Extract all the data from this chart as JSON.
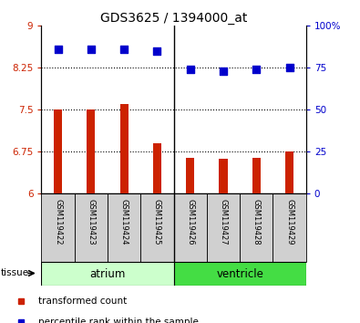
{
  "title": "GDS3625 / 1394000_at",
  "samples": [
    "GSM119422",
    "GSM119423",
    "GSM119424",
    "GSM119425",
    "GSM119426",
    "GSM119427",
    "GSM119428",
    "GSM119429"
  ],
  "bar_values": [
    7.5,
    7.5,
    7.6,
    6.9,
    6.65,
    6.63,
    6.65,
    6.75
  ],
  "scatter_values": [
    86,
    86,
    86,
    85,
    74,
    73,
    74,
    75
  ],
  "bar_bottom": 6.0,
  "ylim_left": [
    6.0,
    9.0
  ],
  "ylim_right": [
    0,
    100
  ],
  "yticks_left": [
    6.0,
    6.75,
    7.5,
    8.25,
    9.0
  ],
  "yticks_right": [
    0,
    25,
    50,
    75,
    100
  ],
  "ytick_labels_left": [
    "6",
    "6.75",
    "7.5",
    "8.25",
    "9"
  ],
  "ytick_labels_right": [
    "0",
    "25",
    "50",
    "75",
    "100%"
  ],
  "hlines": [
    6.75,
    7.5,
    8.25
  ],
  "bar_color": "#cc2200",
  "scatter_color": "#0000cc",
  "tissue_groups": [
    {
      "label": "atrium",
      "start": 0,
      "end": 4,
      "color": "#ccffcc"
    },
    {
      "label": "ventricle",
      "start": 4,
      "end": 8,
      "color": "#44dd44"
    }
  ],
  "tissue_label": "tissue",
  "legend_items": [
    {
      "label": "transformed count",
      "color": "#cc2200",
      "marker": "s"
    },
    {
      "label": "percentile rank within the sample",
      "color": "#0000cc",
      "marker": "s"
    }
  ],
  "left_tick_color": "#cc2200",
  "right_tick_color": "#0000cc",
  "bar_width": 0.25,
  "scatter_size": 30,
  "vline_x": 3.5
}
